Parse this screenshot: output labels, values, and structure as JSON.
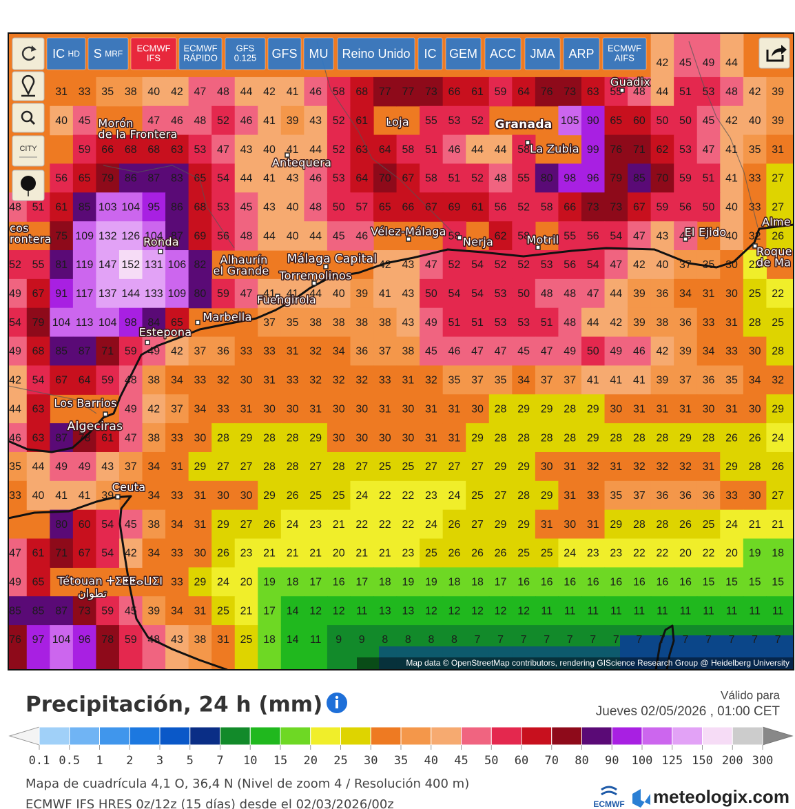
{
  "buttons": [
    {
      "label": "IC",
      "sub": "HD"
    },
    {
      "label": "S",
      "sub": "MRF"
    },
    {
      "lines": [
        "ECMWF",
        "IFS"
      ],
      "active": true
    },
    {
      "lines": [
        "ECMWF",
        "RÁPIDO"
      ]
    },
    {
      "lines": [
        "GFS",
        "0.125"
      ]
    },
    {
      "label": "GFS"
    },
    {
      "label": "MU"
    },
    {
      "label": "Reino Unido"
    },
    {
      "label": "IC"
    },
    {
      "label": "GEM"
    },
    {
      "label": "ACC"
    },
    {
      "label": "JMA"
    },
    {
      "label": "ARP"
    },
    {
      "lines": [
        "ECMWF",
        "AIFS"
      ]
    }
  ],
  "sidebar": {
    "city": "CITY"
  },
  "map": {
    "labels": [
      "Guadix",
      "Loja",
      "Granada",
      "La Zubia",
      "Morón",
      "de la Frontera",
      "Antequera",
      "Vélez-Málaga",
      "Nerja",
      "Motril",
      "El Ejido",
      "Alme",
      "Ronda",
      "cos",
      "rontera",
      "Alhaurín",
      "el Grande",
      "Málaga Capital",
      "Roque",
      "de Ma",
      "Torremolinos",
      "Fuengirola",
      "Marbella",
      "Estepona",
      "Los Barrios",
      "Algeciras",
      "Ceuta",
      "Tétouan ⵜⵉⵟⵟⴰⵡⵉⵏ",
      "تطوان"
    ],
    "attribution": "Map data © OpenStreetMap contributors, rendering GIScience Research Group @ Heidelberg University",
    "grid": [
      [
        null,
        null,
        null,
        null,
        null,
        null,
        null,
        null,
        null,
        null,
        null,
        null,
        null,
        null,
        null,
        null,
        null,
        null,
        null,
        null,
        null,
        null,
        null,
        null,
        null,
        null,
        null,
        null,
        42,
        45,
        49,
        44,
        null,
        null
      ],
      [
        null,
        null,
        31,
        33,
        35,
        38,
        40,
        42,
        47,
        48,
        44,
        42,
        41,
        46,
        58,
        68,
        77,
        77,
        73,
        66,
        61,
        59,
        64,
        76,
        73,
        63,
        55,
        48,
        44,
        51,
        53,
        48,
        42,
        39
      ],
      [
        null,
        null,
        40,
        45,
        null,
        null,
        47,
        46,
        48,
        52,
        46,
        41,
        39,
        43,
        52,
        61,
        null,
        null,
        55,
        53,
        52,
        null,
        null,
        null,
        105,
        90,
        65,
        60,
        50,
        50,
        45,
        42,
        40,
        39
      ],
      [
        null,
        null,
        null,
        59,
        66,
        68,
        68,
        63,
        53,
        47,
        43,
        40,
        41,
        44,
        52,
        63,
        64,
        58,
        51,
        46,
        44,
        44,
        58,
        null,
        null,
        99,
        76,
        71,
        62,
        53,
        47,
        41,
        35,
        31
      ],
      [
        null,
        null,
        56,
        65,
        79,
        86,
        87,
        83,
        65,
        54,
        44,
        41,
        43,
        46,
        53,
        64,
        70,
        67,
        58,
        51,
        52,
        48,
        55,
        80,
        98,
        96,
        79,
        85,
        70,
        59,
        51,
        41,
        33,
        27
      ],
      [
        48,
        51,
        61,
        85,
        103,
        104,
        95,
        86,
        68,
        53,
        45,
        43,
        40,
        48,
        50,
        57,
        65,
        66,
        67,
        69,
        61,
        56,
        52,
        58,
        66,
        73,
        73,
        67,
        59,
        56,
        50,
        40,
        33,
        27
      ],
      [
        null,
        null,
        75,
        109,
        132,
        126,
        104,
        87,
        69,
        56,
        48,
        44,
        40,
        44,
        45,
        46,
        null,
        null,
        null,
        58,
        null,
        62,
        58,
        null,
        55,
        56,
        54,
        47,
        43,
        45,
        null,
        40,
        32,
        26
      ],
      [
        52,
        55,
        81,
        119,
        147,
        152,
        131,
        106,
        82,
        null,
        null,
        null,
        null,
        null,
        null,
        null,
        42,
        43,
        47,
        52,
        54,
        52,
        52,
        53,
        56,
        54,
        47,
        42,
        40,
        37,
        35,
        30,
        22,
        null
      ],
      [
        49,
        67,
        91,
        117,
        137,
        144,
        133,
        109,
        80,
        59,
        47,
        41,
        41,
        44,
        40,
        39,
        41,
        43,
        50,
        54,
        54,
        53,
        50,
        48,
        48,
        47,
        44,
        39,
        36,
        34,
        31,
        30,
        25,
        22
      ],
      [
        54,
        79,
        104,
        113,
        104,
        98,
        84,
        65,
        null,
        null,
        null,
        37,
        35,
        38,
        38,
        38,
        38,
        43,
        49,
        51,
        51,
        53,
        53,
        51,
        48,
        44,
        42,
        39,
        38,
        36,
        33,
        31,
        28,
        25
      ],
      [
        49,
        68,
        85,
        87,
        71,
        59,
        49,
        42,
        37,
        36,
        33,
        33,
        31,
        32,
        34,
        36,
        37,
        38,
        45,
        46,
        47,
        47,
        45,
        47,
        49,
        50,
        49,
        46,
        42,
        39,
        34,
        33,
        30,
        28
      ],
      [
        42,
        54,
        67,
        64,
        59,
        48,
        38,
        34,
        33,
        32,
        30,
        31,
        33,
        32,
        32,
        32,
        33,
        31,
        32,
        35,
        37,
        35,
        34,
        37,
        37,
        41,
        41,
        41,
        39,
        37,
        36,
        35,
        34,
        32
      ],
      [
        44,
        63,
        null,
        null,
        null,
        49,
        42,
        37,
        34,
        33,
        31,
        30,
        30,
        31,
        30,
        30,
        31,
        30,
        31,
        31,
        30,
        28,
        29,
        29,
        28,
        29,
        30,
        31,
        31,
        31,
        30,
        31,
        30,
        29
      ],
      [
        46,
        63,
        87,
        78,
        61,
        47,
        38,
        33,
        30,
        28,
        29,
        28,
        28,
        29,
        30,
        30,
        30,
        30,
        31,
        31,
        29,
        28,
        28,
        28,
        28,
        29,
        28,
        28,
        28,
        29,
        28,
        26,
        26,
        24
      ],
      [
        35,
        44,
        49,
        49,
        43,
        37,
        34,
        31,
        29,
        27,
        27,
        28,
        28,
        27,
        28,
        27,
        25,
        25,
        27,
        27,
        27,
        29,
        29,
        30,
        31,
        32,
        31,
        32,
        32,
        32,
        31,
        29,
        28,
        26
      ],
      [
        33,
        40,
        41,
        41,
        39,
        null,
        34,
        33,
        31,
        30,
        30,
        29,
        26,
        25,
        25,
        24,
        22,
        22,
        23,
        24,
        25,
        27,
        28,
        29,
        31,
        33,
        35,
        37,
        36,
        36,
        36,
        33,
        30,
        27
      ],
      [
        null,
        null,
        80,
        60,
        54,
        45,
        38,
        34,
        31,
        29,
        27,
        26,
        24,
        23,
        21,
        22,
        22,
        22,
        24,
        26,
        27,
        29,
        29,
        31,
        30,
        31,
        29,
        28,
        28,
        26,
        25,
        24,
        21,
        21
      ],
      [
        47,
        61,
        71,
        67,
        54,
        42,
        34,
        33,
        30,
        26,
        23,
        21,
        21,
        21,
        20,
        21,
        21,
        23,
        25,
        26,
        26,
        26,
        25,
        25,
        24,
        23,
        23,
        22,
        22,
        20,
        22,
        20,
        19,
        18
      ],
      [
        49,
        65,
        null,
        null,
        null,
        null,
        null,
        33,
        29,
        24,
        20,
        19,
        18,
        17,
        16,
        17,
        18,
        19,
        19,
        18,
        18,
        17,
        16,
        16,
        16,
        16,
        16,
        16,
        16,
        16,
        15,
        15,
        15,
        15
      ],
      [
        85,
        85,
        87,
        73,
        59,
        45,
        39,
        34,
        31,
        25,
        21,
        17,
        14,
        12,
        12,
        11,
        13,
        13,
        12,
        12,
        12,
        12,
        12,
        11,
        11,
        11,
        11,
        11,
        11,
        11,
        11,
        11,
        11,
        11
      ],
      [
        76,
        97,
        104,
        96,
        78,
        59,
        48,
        43,
        38,
        31,
        25,
        18,
        14,
        11,
        9,
        9,
        8,
        8,
        8,
        8,
        7,
        7,
        7,
        7,
        7,
        7,
        7,
        7,
        7,
        7,
        7,
        7,
        7,
        7
      ]
    ]
  },
  "legend": {
    "title": "Precipitación, 24 h (mm)",
    "valid_label": "Válido para",
    "valid_time": "Jueves 02/05/2026 , 01:00 CET",
    "thresholds": [
      0.1,
      0.5,
      1,
      2,
      3,
      5,
      7,
      10,
      15,
      20,
      25,
      30,
      35,
      40,
      45,
      50,
      60,
      70,
      80,
      90,
      100,
      125,
      150,
      200,
      300
    ],
    "colors": [
      "#a0d0f8",
      "#70b4f4",
      "#4096ec",
      "#1c78e0",
      "#0a58c8",
      "#0a2e86",
      "#128a2a",
      "#20b81e",
      "#6ed824",
      "#f0ee2a",
      "#ded400",
      "#ee7a22",
      "#f4974a",
      "#f6aa70",
      "#f06480",
      "#e4284e",
      "#c8101e",
      "#8e0a1a",
      "#5a0a76",
      "#a820e2",
      "#cc66ee",
      "#e2a2f6",
      "#f6dcf6",
      "#cccccc"
    ]
  },
  "footer": {
    "grid_info": "Mapa de cuadrícula 4,1 O, 36,4 N (Nivel de zoom 4 / Resolución 400 m)",
    "model_info": "ECMWF IFS HRES 0z/12z (15 días) desde el 02/03/2026/00z",
    "ecmwf_logo": "ECMWF",
    "brand": "meteologix.com"
  }
}
